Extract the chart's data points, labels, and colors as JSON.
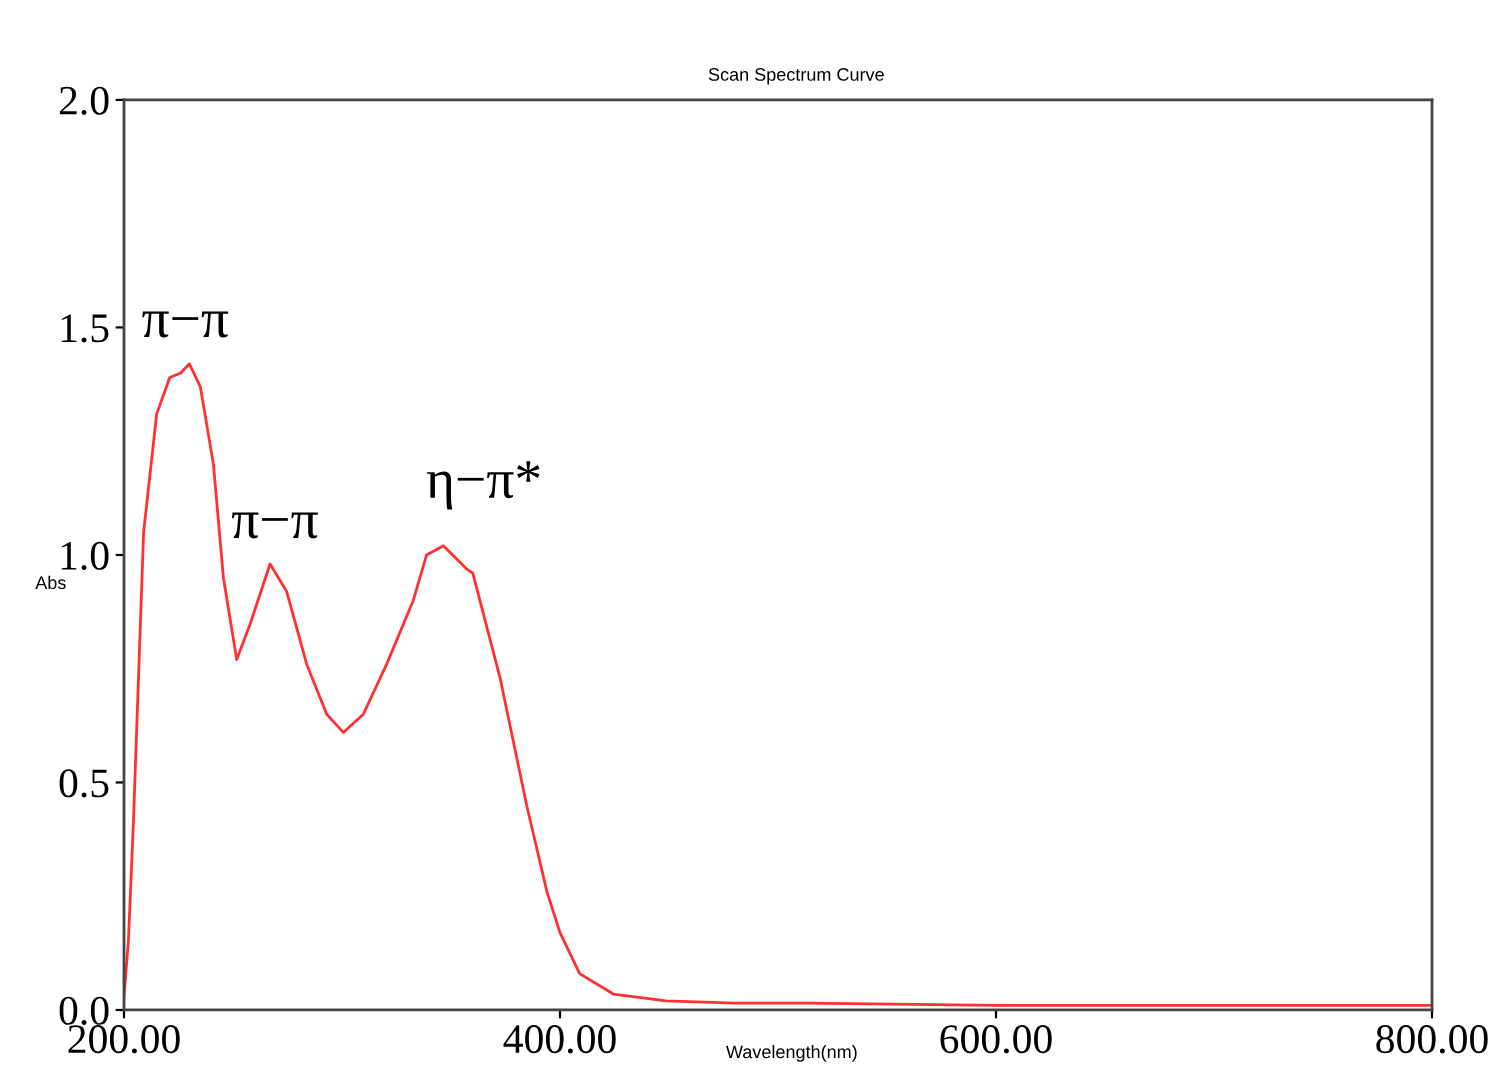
{
  "chart_data": {
    "type": "line",
    "title": "Scan Spectrum Curve",
    "xlabel": "Wavelength(nm)",
    "ylabel": "Abs",
    "xlim": [
      200,
      800
    ],
    "ylim": [
      0,
      2.0
    ],
    "xticks": [
      {
        "value": 200,
        "label": "200.00"
      },
      {
        "value": 400,
        "label": "400.00"
      },
      {
        "value": 600,
        "label": "600.00"
      },
      {
        "value": 800,
        "label": "800.00"
      }
    ],
    "yticks": [
      {
        "value": 0,
        "label": "0.0"
      },
      {
        "value": 0.5,
        "label": "0.5"
      },
      {
        "value": 1.0,
        "label": "1.0"
      },
      {
        "value": 1.5,
        "label": "1.5"
      },
      {
        "value": 2.0,
        "label": "2.0"
      }
    ],
    "grid": false,
    "legend": false,
    "marker": "none",
    "line_style": "solid",
    "series": [
      {
        "color": "#ff3030",
        "x": [
          200,
          202,
          204.3,
          209,
          215,
          221,
          226,
          230,
          235,
          241,
          245.6,
          251.7,
          258,
          267,
          274.6,
          283.8,
          293,
          300.6,
          309.8,
          320.5,
          332.7,
          338.8,
          346.5,
          357,
          360,
          372.5,
          384.7,
          394,
          400,
          409,
          424.5,
          448.6,
          480,
          514,
          600,
          700,
          800
        ],
        "values": [
          0.03,
          0.15,
          0.41,
          1.05,
          1.31,
          1.39,
          1.4,
          1.42,
          1.37,
          1.2,
          0.95,
          0.77,
          0.85,
          0.98,
          0.92,
          0.76,
          0.65,
          0.61,
          0.65,
          0.76,
          0.9,
          1.0,
          1.02,
          0.97,
          0.96,
          0.73,
          0.45,
          0.26,
          0.17,
          0.08,
          0.035,
          0.02,
          0.015,
          0.015,
          0.01,
          0.01,
          0.01
        ]
      }
    ],
    "annotations": [
      "π−π",
      "π−π",
      "η−π*"
    ]
  }
}
